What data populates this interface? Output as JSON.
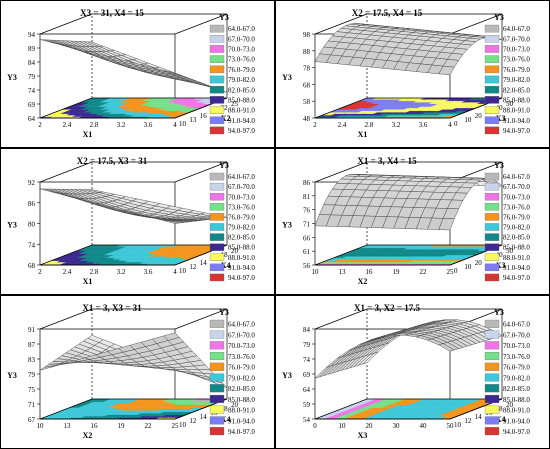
{
  "figure": {
    "legend_title": "Y3",
    "legend_labels": [
      "64.0-67.0",
      "67.0-70.0",
      "70.0-73.0",
      "73.0-76.0",
      "76.0-79.0",
      "79.0-82.0",
      "82.0-85.0",
      "85.0-88.0",
      "88.0-91.0",
      "91.0-94.0",
      "94.0-97.0"
    ],
    "legend_colors": [
      "#b8b8b8",
      "#c8d4ec",
      "#f074e8",
      "#74e08a",
      "#f4941c",
      "#3cc8d8",
      "#108888",
      "#3c2890",
      "#f8f860",
      "#7c7cf4",
      "#d83434"
    ]
  },
  "chart_data": [
    {
      "type": "surface",
      "title": "X3 = 31, X4 = 15",
      "zlabel": "Y3",
      "xlabel": "X1",
      "ylabel": "X2",
      "z_ticks": [
        "94",
        "89",
        "84",
        "79",
        "74",
        "69",
        "64"
      ],
      "x_ticks": [
        "2",
        "2.4",
        "2.8",
        "3.2",
        "3.6",
        "4"
      ],
      "y_ticks": [
        "10",
        "13",
        "16",
        "19",
        "22",
        "25"
      ],
      "zlim": [
        64,
        94
      ],
      "surface_corners": {
        "x_lo_y_lo": 92,
        "x_hi_y_lo": 80,
        "x_lo_y_hi": 84,
        "x_hi_y_hi": 66
      }
    },
    {
      "type": "surface",
      "title": "X2 = 17.5, X4 = 15",
      "zlabel": "Y3",
      "xlabel": "X1",
      "ylabel": "X3",
      "z_ticks": [
        "98",
        "88",
        "78",
        "68",
        "58",
        "48"
      ],
      "x_ticks": [
        "2",
        "2.4",
        "2.8",
        "3.2",
        "3.6",
        "4"
      ],
      "y_ticks": [
        "0",
        "10",
        "20",
        "30",
        "40",
        "50"
      ],
      "zlim": [
        48,
        98
      ],
      "surface_shape": "ridge along X3 with maximum near X3 = 30, decreasing with X1"
    },
    {
      "type": "surface",
      "title": "X2 = 17.5, X3 = 31",
      "zlabel": "Y3",
      "xlabel": "X1",
      "ylabel": "X4",
      "z_ticks": [
        "92",
        "86",
        "80",
        "74",
        "68"
      ],
      "x_ticks": [
        "2",
        "2.4",
        "2.8",
        "3.2",
        "3.6",
        "4"
      ],
      "y_ticks": [
        "10",
        "12",
        "14",
        "16",
        "18",
        "20"
      ],
      "zlim": [
        68,
        92
      ],
      "surface_corners": {
        "x_lo_y_lo": 90,
        "x_hi_y_lo": 80,
        "x_lo_y_hi": 84,
        "x_hi_y_hi": 76
      }
    },
    {
      "type": "surface",
      "title": "X1 = 3, X4 = 15",
      "zlabel": "Y3",
      "xlabel": "X2",
      "ylabel": "X3",
      "z_ticks": [
        "86",
        "81",
        "76",
        "71",
        "66",
        "61",
        "56"
      ],
      "x_ticks": [
        "10",
        "13",
        "16",
        "19",
        "22",
        "25"
      ],
      "y_ticks": [
        "0",
        "10",
        "20",
        "30",
        "40",
        "50"
      ],
      "zlim": [
        56,
        86
      ],
      "surface_shape": "dome along X3 with maximum near X3 = 30, nearly flat in X2"
    },
    {
      "type": "surface",
      "title": "X1 = 3, X3 = 31",
      "zlabel": "Y3",
      "xlabel": "X2",
      "ylabel": "X4",
      "z_ticks": [
        "91",
        "87",
        "83",
        "79",
        "75",
        "71",
        "67"
      ],
      "x_ticks": [
        "10",
        "13",
        "16",
        "19",
        "22",
        "25"
      ],
      "y_ticks": [
        "10",
        "12",
        "14",
        "16",
        "18",
        "20"
      ],
      "zlim": [
        67,
        91
      ],
      "surface_corners": {
        "x_lo_y_lo": 80,
        "x_hi_y_lo": 90,
        "x_lo_y_hi": 84,
        "x_hi_y_hi": 70
      }
    },
    {
      "type": "surface",
      "title": "X1 = 3, X2 = 17.5",
      "zlabel": "Y3",
      "xlabel": "X3",
      "ylabel": "X4",
      "z_ticks": [
        "84",
        "79",
        "74",
        "69",
        "64",
        "59",
        "54"
      ],
      "x_ticks": [
        "0",
        "10",
        "20",
        "30",
        "40",
        "50"
      ],
      "y_ticks": [
        "10",
        "12",
        "14",
        "16",
        "18",
        "20"
      ],
      "zlim": [
        54,
        84
      ],
      "surface_shape": "dome along X3 with maximum near X3 = 30, nearly flat in X4"
    }
  ]
}
